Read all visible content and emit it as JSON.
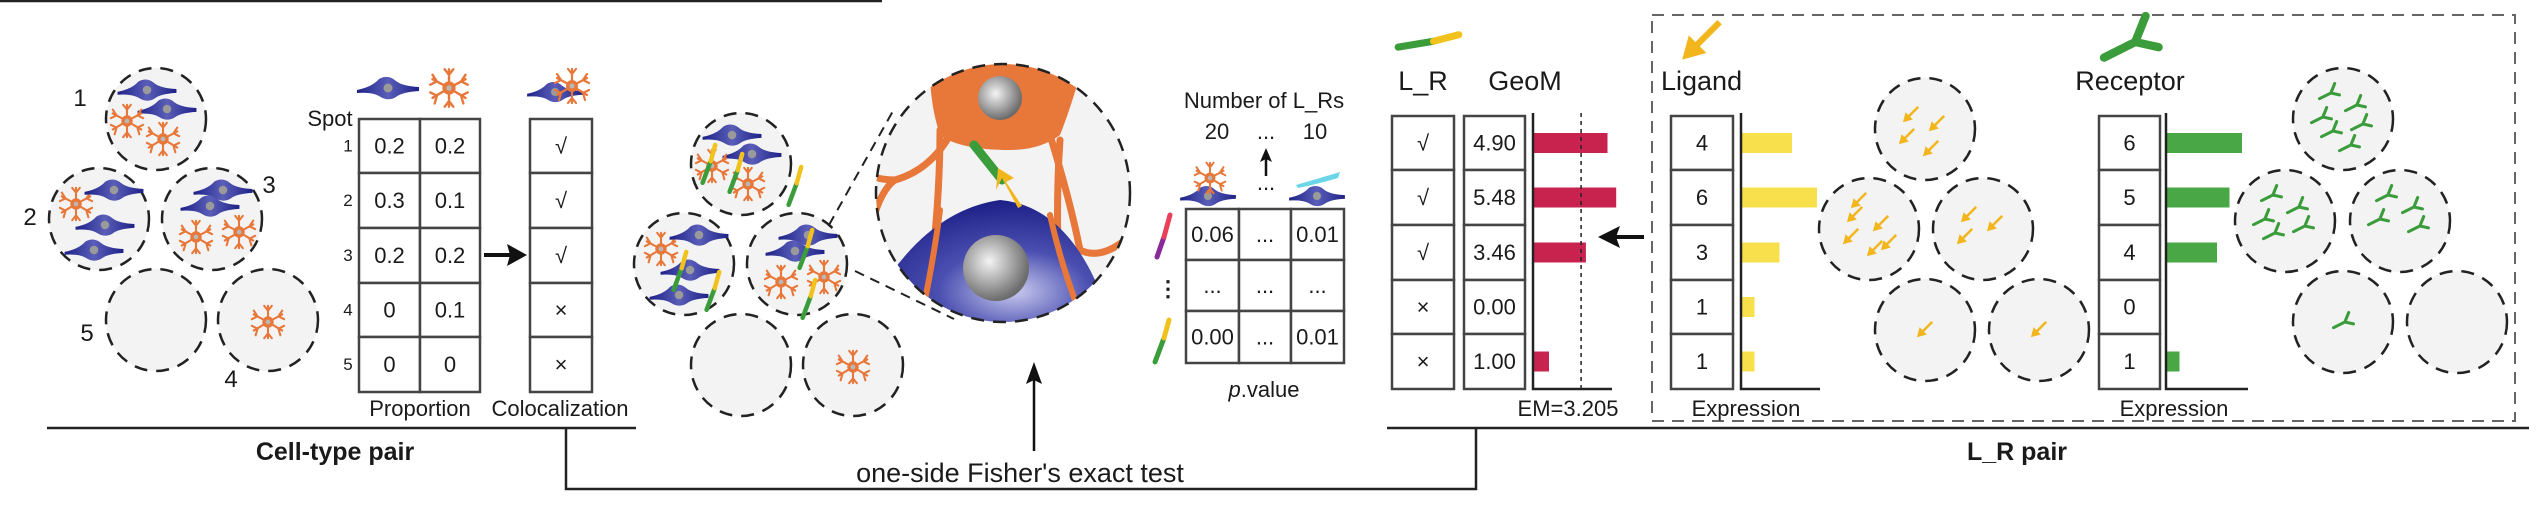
{
  "cell_type_pair": {
    "title": "Cell-type pair",
    "spot_header": "Spot",
    "spot_labels": [
      "1",
      "2",
      "3",
      "4",
      "5"
    ],
    "row_labels": [
      "1",
      "2",
      "3",
      "4",
      "5"
    ],
    "proportion": {
      "label": "Proportion",
      "rows": [
        [
          "0.2",
          "0.2"
        ],
        [
          "0.3",
          "0.1"
        ],
        [
          "0.2",
          "0.2"
        ],
        [
          "0",
          "0.1"
        ],
        [
          "0",
          "0"
        ]
      ]
    },
    "colocalization": {
      "label": "Colocalization",
      "rows": [
        "√",
        "√",
        "√",
        "×",
        "×"
      ]
    }
  },
  "fisher": {
    "label": "one-side Fisher's exact test"
  },
  "pvalue": {
    "header": "Number of L_Rs",
    "counts": [
      "20",
      "...",
      "10"
    ],
    "icon_ellipsis": "...",
    "row_ellipsis": "⋮",
    "rows": [
      [
        "0.06",
        "...",
        "0.01"
      ],
      [
        "...",
        "...",
        "..."
      ],
      [
        "0.00",
        "...",
        "0.01"
      ]
    ],
    "label": "p.value",
    "label_italic_part": "p",
    "label_rest": ".value"
  },
  "lr_pair": {
    "title": "L_R pair",
    "lr_header": "L_R",
    "geom_header": "GeoM",
    "lr_marks": [
      "√",
      "√",
      "√",
      "×",
      "×"
    ],
    "geom_labels": [
      "4.90",
      "5.48",
      "3.46",
      "0.00",
      "1.00"
    ],
    "geom_values": [
      4.9,
      5.48,
      3.46,
      0.0,
      1.0
    ],
    "em_label": "EM=3.205",
    "em_value": 3.205,
    "ligand": {
      "label": "Ligand",
      "values": [
        "4",
        "6",
        "3",
        "1",
        "1"
      ],
      "axis_label": "Expression"
    },
    "receptor": {
      "label": "Receptor",
      "values": [
        "6",
        "5",
        "4",
        "0",
        "1"
      ],
      "axis_label": "Expression"
    }
  },
  "colors": {
    "neuron": "#2b2f8f",
    "astrocyte": "#e8773a",
    "ligand": "#f2b51c",
    "receptor": "#3a9c3a",
    "geom_bar": "#c8234f",
    "ligand_bar": "#f7e04b",
    "receptor_bar": "#49a845",
    "spot_fill": "#f3f3f3"
  }
}
